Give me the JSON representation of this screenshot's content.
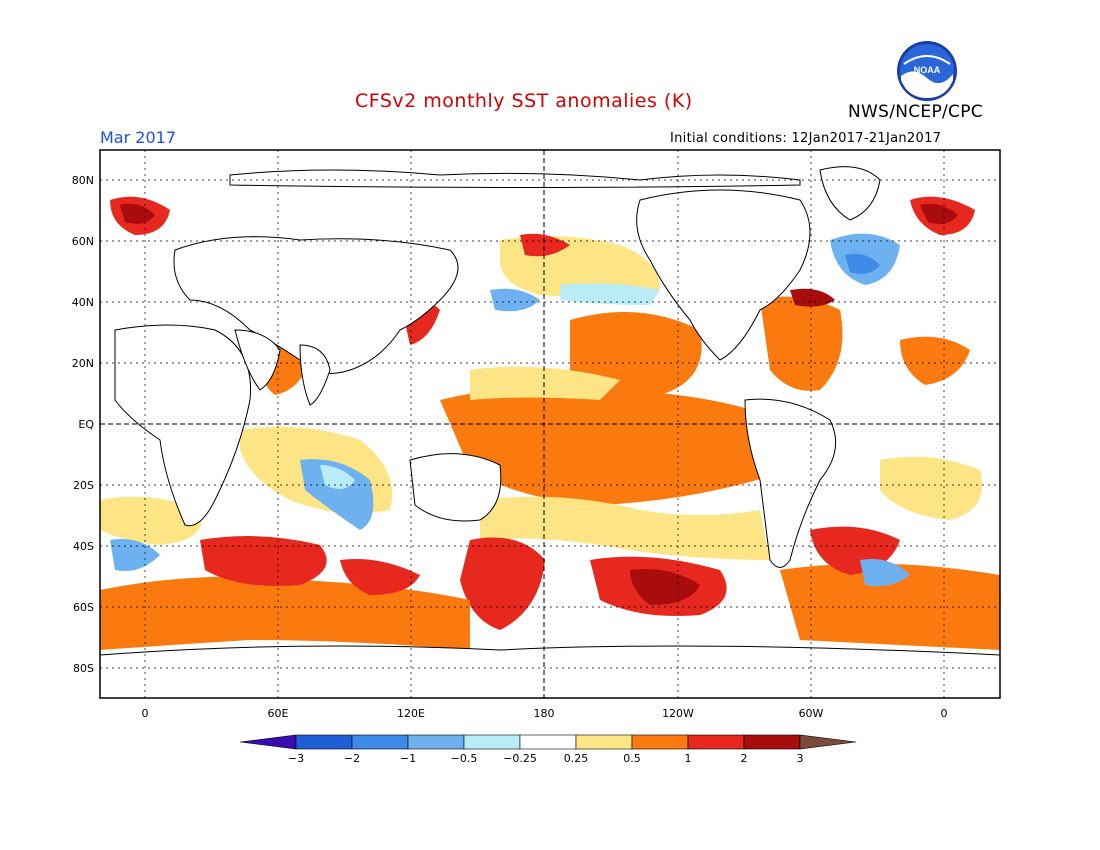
{
  "title": "CFSv2 monthly SST anomalies (K)",
  "agency": "NWS/NCEP/CPC",
  "logo_text": "NOAA",
  "valid_month": "Mar 2017",
  "initial_conditions": "Initial conditions: 12Jan2017-21Jan2017",
  "lat_labels": [
    "80N",
    "60N",
    "40N",
    "20N",
    "EQ",
    "20S",
    "40S",
    "60S",
    "80S"
  ],
  "lon_labels": [
    "0",
    "60E",
    "120E",
    "180",
    "120W",
    "60W",
    "0"
  ],
  "colorbar": {
    "ticks": [
      "-3",
      "-2",
      "-1",
      "-0.5",
      "-0.25",
      "0.25",
      "0.5",
      "1",
      "2",
      "3"
    ],
    "colors": [
      "#3a0bb0",
      "#1f5fd6",
      "#3d8ae8",
      "#6eb1f0",
      "#b9ecf6",
      "#ffffff",
      "#fde484",
      "#fb7a10",
      "#e6281e",
      "#a80c0c",
      "#7a4a3a"
    ]
  },
  "colors": {
    "title": "#d40000",
    "month": "#1f4fe0",
    "land": "#ffffff",
    "neutral_ocean": "#ffffff"
  }
}
